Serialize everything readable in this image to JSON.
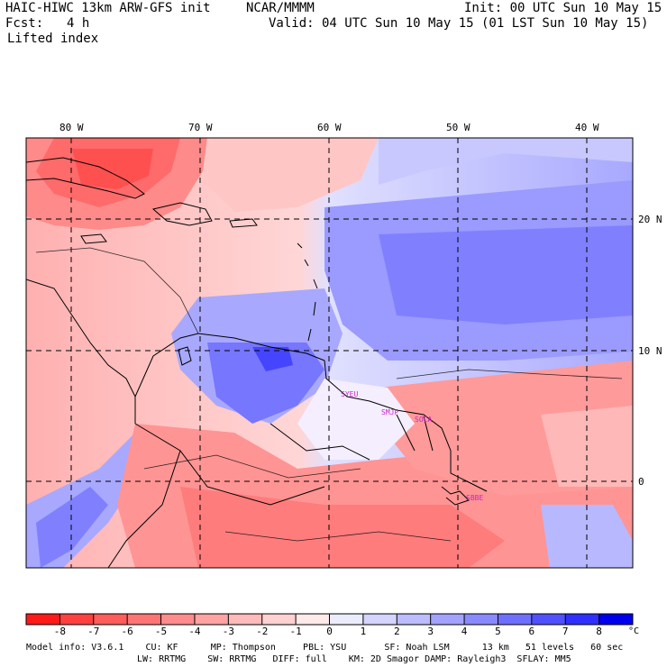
{
  "header": {
    "title": "HAIC-HIWC 13km ARW-GFS init",
    "center": "NCAR/MMMM",
    "init": "Init: 00 UTC Sun 10 May 15",
    "fcst_label": "Fcst:",
    "fcst_value": "4 h",
    "valid": "Valid: 04 UTC Sun 10 May 15 (01 LST Sun 10 May 15)",
    "field": "Lifted index"
  },
  "map": {
    "lon_labels": [
      "80 W",
      "70 W",
      "60 W",
      "50 W",
      "40 W"
    ],
    "lat_labels": [
      "20 N",
      "10 N",
      "0"
    ],
    "stations": [
      "SYEU",
      "SMJP",
      "SOCA",
      "SBBE"
    ],
    "station_color": "#cc22cc"
  },
  "colorbar": {
    "ticks": [
      "-8",
      "-7",
      "-6",
      "-5",
      "-4",
      "-3",
      "-2",
      "-1",
      "0",
      "1",
      "2",
      "3",
      "4",
      "5",
      "6",
      "7",
      "8"
    ],
    "unit": "°C",
    "colors": [
      "#ff1a1a",
      "#ff4040",
      "#ff5c5c",
      "#ff7575",
      "#ff8c8c",
      "#ffa3a3",
      "#ffbaba",
      "#ffd1d1",
      "#ffeaea",
      "#ececff",
      "#d4d4ff",
      "#bcbcff",
      "#a3a3ff",
      "#8a8aff",
      "#6f6fff",
      "#5050ff",
      "#2f2fff",
      "#0000ee"
    ]
  },
  "footer": {
    "line1": "Model info: V3.6.1    CU: KF      MP: Thompson     PBL: YSU       SF: Noah LSM      13 km   51 levels   60 sec",
    "line2": "LW: RRTMG    SW: RRTMG   DIFF: full    KM: 2D Smagor DAMP: Rayleigh3  SFLAY: MM5"
  }
}
